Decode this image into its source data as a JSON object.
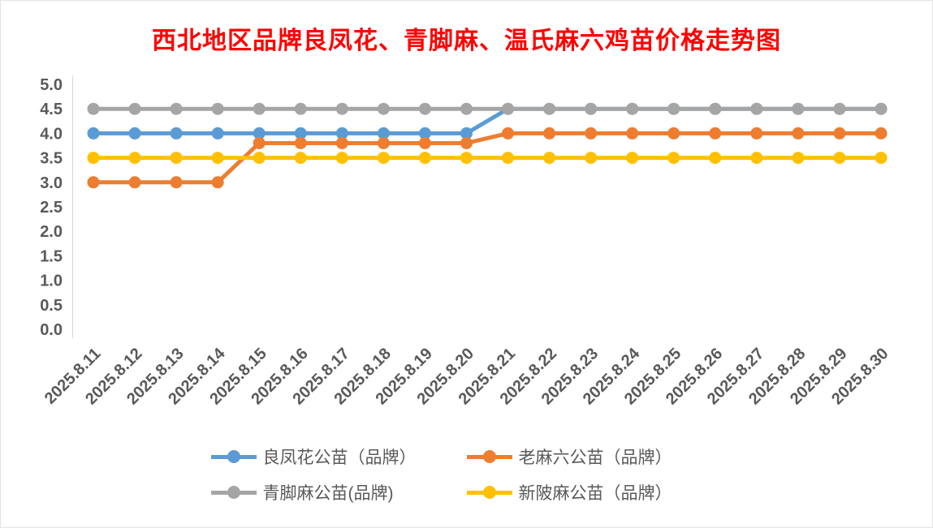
{
  "chart_data": {
    "type": "line",
    "title": "西北地区品牌良凤花、青脚麻、温氏麻六鸡苗价格走势图",
    "title_color": "#ff0000",
    "x": [
      "2025.8.11",
      "2025.8.12",
      "2025.8.13",
      "2025.8.14",
      "2025.8.15",
      "2025.8.16",
      "2025.8.17",
      "2025.8.18",
      "2025.8.19",
      "2025.8.20",
      "2025.8.21",
      "2025.8.22",
      "2025.8.23",
      "2025.8.24",
      "2025.8.25",
      "2025.8.26",
      "2025.8.27",
      "2025.8.28",
      "2025.8.29",
      "2025.8.30"
    ],
    "ylim": [
      0.0,
      5.0
    ],
    "ytick_step": 0.5,
    "grid": "off",
    "legend_position": "bottom",
    "axis_text_color": "#595959",
    "series": [
      {
        "name": "良凤花公苗（品牌）",
        "color": "#5B9BD5",
        "values": [
          4.0,
          4.0,
          4.0,
          4.0,
          4.0,
          4.0,
          4.0,
          4.0,
          4.0,
          4.0,
          4.5,
          4.5,
          4.5,
          4.5,
          4.5,
          4.5,
          4.5,
          4.5,
          4.5,
          4.5
        ]
      },
      {
        "name": "老麻六公苗（品牌）",
        "color": "#ED7D31",
        "values": [
          3.0,
          3.0,
          3.0,
          3.0,
          3.8,
          3.8,
          3.8,
          3.8,
          3.8,
          3.8,
          4.0,
          4.0,
          4.0,
          4.0,
          4.0,
          4.0,
          4.0,
          4.0,
          4.0,
          4.0
        ]
      },
      {
        "name": "青脚麻公苗(品牌)",
        "color": "#A5A5A5",
        "values": [
          4.5,
          4.5,
          4.5,
          4.5,
          4.5,
          4.5,
          4.5,
          4.5,
          4.5,
          4.5,
          4.5,
          4.5,
          4.5,
          4.5,
          4.5,
          4.5,
          4.5,
          4.5,
          4.5,
          4.5
        ]
      },
      {
        "name": "新陂麻公苗（品牌）",
        "color": "#FFC000",
        "values": [
          3.5,
          3.5,
          3.5,
          3.5,
          3.5,
          3.5,
          3.5,
          3.5,
          3.5,
          3.5,
          3.5,
          3.5,
          3.5,
          3.5,
          3.5,
          3.5,
          3.5,
          3.5,
          3.5,
          3.5
        ]
      }
    ]
  }
}
